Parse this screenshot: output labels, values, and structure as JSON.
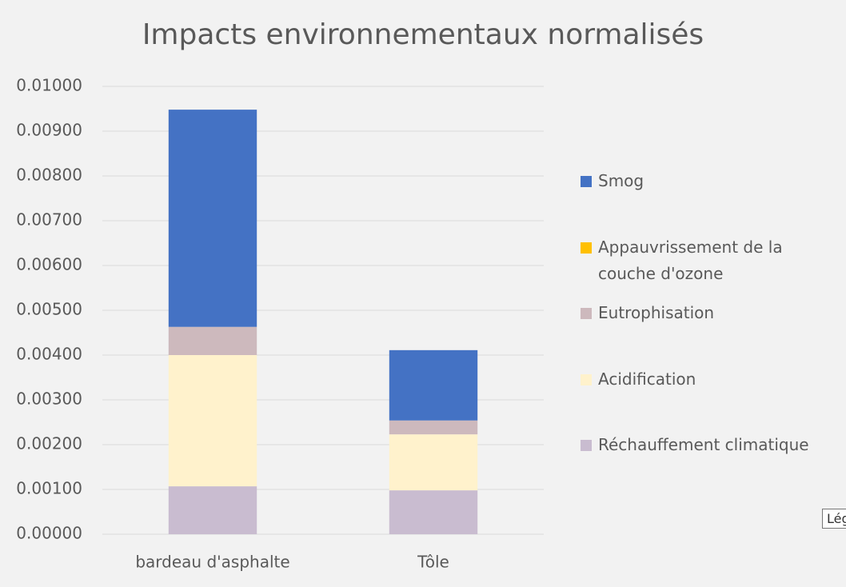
{
  "chart_data": {
    "type": "stacked_bar",
    "title": "Impacts environnementaux normalisés",
    "categories": [
      "bardeau d'asphalte",
      "Tôle"
    ],
    "series": [
      {
        "name": "Réchauffement climatique",
        "color": "#c9bcd0",
        "values": [
          0.00107,
          0.00098
        ]
      },
      {
        "name": "Acidification",
        "color": "#fff2cc",
        "values": [
          0.00293,
          0.00125
        ]
      },
      {
        "name": "Eutrophisation",
        "color": "#cdb9bd",
        "values": [
          0.00063,
          0.00031
        ]
      },
      {
        "name": "Appauvrissement de la couche d'ozone",
        "color": "#ffc000",
        "values": [
          0,
          0
        ]
      },
      {
        "name": "Smog",
        "color": "#4472c4",
        "values": [
          0.00485,
          0.00157
        ]
      }
    ],
    "ylim": [
      0,
      0.01
    ],
    "yticks": [
      {
        "value": 0,
        "label": "0.00000"
      },
      {
        "value": 0.001,
        "label": "0.00100"
      },
      {
        "value": 0.002,
        "label": "0.00200"
      },
      {
        "value": 0.003,
        "label": "0.00300"
      },
      {
        "value": 0.004,
        "label": "0.00400"
      },
      {
        "value": 0.005,
        "label": "0.00500"
      },
      {
        "value": 0.006,
        "label": "0.00600"
      },
      {
        "value": 0.007,
        "label": "0.00700"
      },
      {
        "value": 0.008,
        "label": "0.00800"
      },
      {
        "value": 0.009,
        "label": "0.00900"
      },
      {
        "value": 0.01,
        "label": "0.01000"
      }
    ],
    "grid": true,
    "legend": "right",
    "tooltip": "Lég"
  }
}
